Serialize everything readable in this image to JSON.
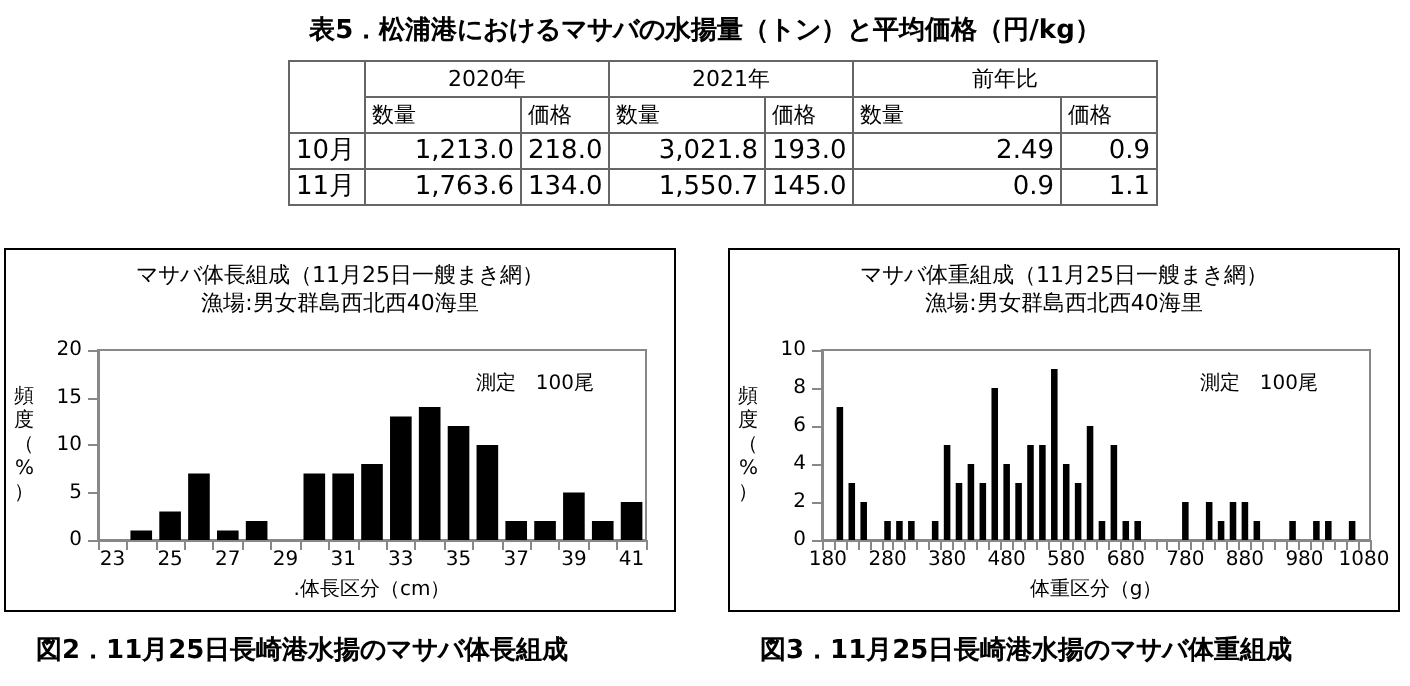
{
  "chart_data": [
    {
      "type": "other",
      "title": "表5．松浦港におけるマサバの水揚量（トン）と平均価格（円/kg）",
      "annotations": [
        "2020年",
        "2021年",
        "前年比",
        "数量",
        "価格",
        "数量",
        "価格",
        "数量",
        "価格",
        "10月",
        "1,213.0",
        "218.0",
        "3,021.8",
        "193.0",
        "2.49",
        "0.9",
        "11月",
        "1,763.6",
        "134.0",
        "1,550.7",
        "145.0",
        "0.9",
        "1.1"
      ]
    },
    {
      "type": "bar",
      "title": "マサバ体長組成（11月25日一艘まき網）",
      "subtitle": "漁場:男女群島西北西40海里",
      "xlabel": ".体長区分（cm）",
      "ylabel": "頻度（%）",
      "categories": [
        "23",
        null,
        "25",
        null,
        "27",
        null,
        "29",
        null,
        "31",
        null,
        "33",
        null,
        "35",
        null,
        "37",
        null,
        "39",
        null,
        "41"
      ],
      "values": [
        0,
        1,
        3,
        7,
        1,
        2,
        0,
        7,
        7,
        8,
        13,
        14,
        12,
        10,
        2,
        2,
        5,
        2,
        4
      ],
      "color": "#000000",
      "ylim": [
        0,
        20
      ],
      "yticks": [
        0,
        5,
        10,
        15,
        20
      ],
      "annotations": [
        "測定　100尾",
        "図2．11月25日長崎港水揚のマサバ体長組成"
      ]
    },
    {
      "type": "bar",
      "title": "マサバ体重組成（11月25日一艘まき網）",
      "subtitle": "漁場:男女群島西北西40海里",
      "xlabel": "体重区分（g）",
      "ylabel": "頻度（%）",
      "categories": [
        "180",
        null,
        null,
        null,
        null,
        "280",
        null,
        null,
        null,
        null,
        "380",
        null,
        null,
        null,
        null,
        "480",
        null,
        null,
        null,
        null,
        "580",
        null,
        null,
        null,
        null,
        "680",
        null,
        null,
        null,
        null,
        "780",
        null,
        null,
        null,
        null,
        "880",
        null,
        null,
        null,
        null,
        "980",
        null,
        null,
        null,
        null,
        "1080"
      ],
      "values": [
        0,
        7,
        3,
        2,
        0,
        1,
        1,
        1,
        0,
        1,
        5,
        3,
        4,
        3,
        8,
        4,
        3,
        5,
        5,
        9,
        4,
        3,
        6,
        1,
        5,
        1,
        1,
        0,
        0,
        0,
        2,
        0,
        2,
        1,
        2,
        2,
        1,
        0,
        0,
        1,
        0,
        1,
        1,
        0,
        1,
        0
      ],
      "color": "#000000",
      "ylim": [
        0,
        10
      ],
      "yticks": [
        0,
        2,
        4,
        6,
        8,
        10
      ],
      "annotations": [
        "測定　100尾",
        "図3．11月25日長崎港水揚のマサバ体重組成"
      ]
    }
  ]
}
